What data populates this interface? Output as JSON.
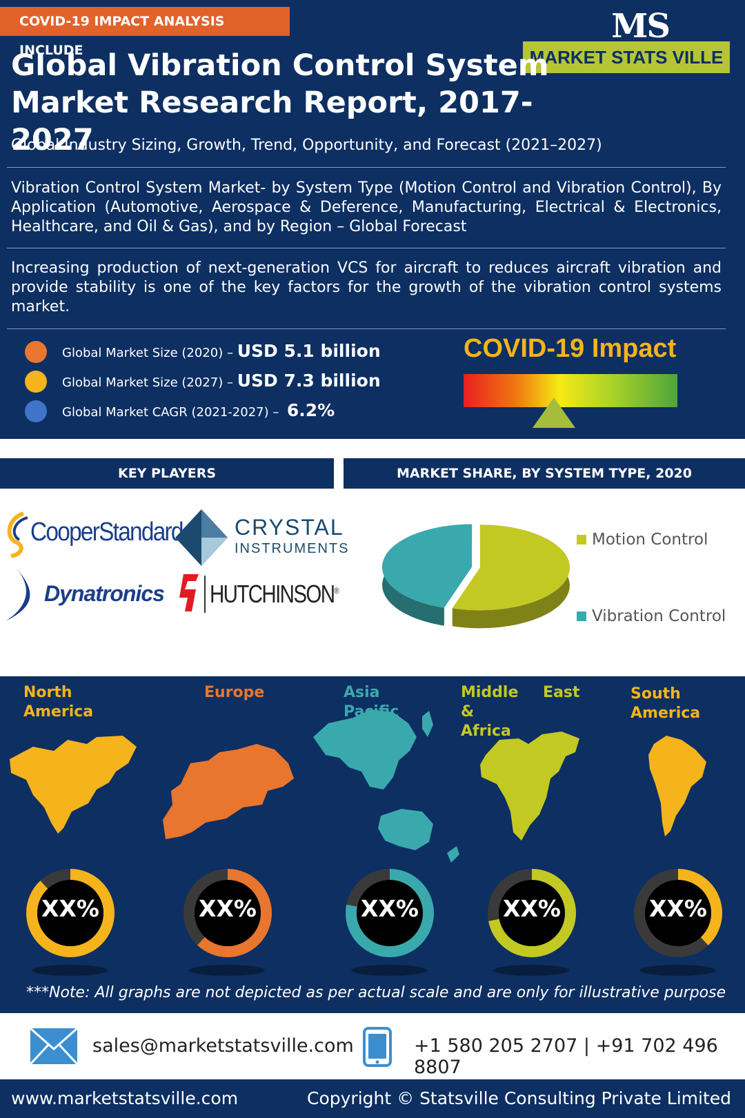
{
  "header": {
    "tag": "COVID-19 IMPACT ANALYSIS INCLUDE",
    "logo_mark": "MS",
    "logo_text": "MARKET STATS VILLE",
    "title_line1": "Global Vibration Control System",
    "title_line2": "Market Research Report, 2017-2027",
    "subtitle": "Global Industry Sizing, Growth, Trend, Opportunity, and Forecast (2021–2027)"
  },
  "description": "Vibration Control System Market- by System Type (Motion Control and Vibration Control), By Application (Automotive, Aerospace & Deference, Manufacturing, Electrical & Electronics, Healthcare, and Oil & Gas), and by Region – Global Forecast",
  "driver": "Increasing production of next-generation VCS for aircraft to reduces aircraft vibration and provide stability is one of the key factors for the growth of the vibration control systems market.",
  "stats": [
    {
      "label": "Global Market Size (2020) –",
      "value": "USD 5.1 billion",
      "color": "#e8762f"
    },
    {
      "label": "Global Market Size (2027) –",
      "value": "USD 7.3 billion",
      "color": "#f5b41c"
    },
    {
      "label": "Global Market CAGR (2021-2027) –",
      "value": "6.2%",
      "color": "#3f74c9"
    }
  ],
  "covid": {
    "title": "COVID-19 Impact"
  },
  "sections": {
    "key_players": "KEY PLAYERS",
    "market_share": "MARKET SHARE, BY SYSTEM TYPE, 2020"
  },
  "players": {
    "cooper": "CooperStandard",
    "crystal_line1": "CRYSTAL",
    "crystal_line2": "INSTRUMENTS",
    "dynatronics": "Dynatronics",
    "hutchinson": "HUTCHINSON",
    "hutchinson_mark": "®"
  },
  "chart_data": {
    "type": "pie",
    "series": [
      {
        "name": "Motion Control",
        "value": 55,
        "color": "#c3c923"
      },
      {
        "name": "Vibration Control",
        "value": 45,
        "color": "#3aa9ad"
      }
    ]
  },
  "regions": [
    {
      "name_line1": "North",
      "name_line2": "America",
      "color": "#f5b41c",
      "value_label": "XX%",
      "fill": 0.88
    },
    {
      "name_line1": "Europe",
      "name_line2": "",
      "color": "#e8762f",
      "value_label": "XX%",
      "fill": 0.62
    },
    {
      "name_line1": "Asia",
      "name_line2": "Pacific",
      "color": "#3aa9ad",
      "value_label": "XX%",
      "fill": 0.78
    },
    {
      "name_line1": "Middle East &",
      "name_line2": "Africa",
      "color": "#c3c923",
      "value_label": "XX%",
      "fill": 0.72
    },
    {
      "name_line1": "South",
      "name_line2": "America",
      "color": "#f5b41c",
      "value_label": "XX%",
      "fill": 0.38
    }
  ],
  "note": "***Note: All graphs are not depicted as per actual scale and are only for illustrative purpose",
  "contact": {
    "email": "sales@marketstatsville.com",
    "phone": "+1 580 205 2707 | +91 702 496 8807"
  },
  "footer": {
    "url": "www.marketstatsville.com",
    "copyright": "Copyright © Statsville Consulting Private Limited"
  }
}
